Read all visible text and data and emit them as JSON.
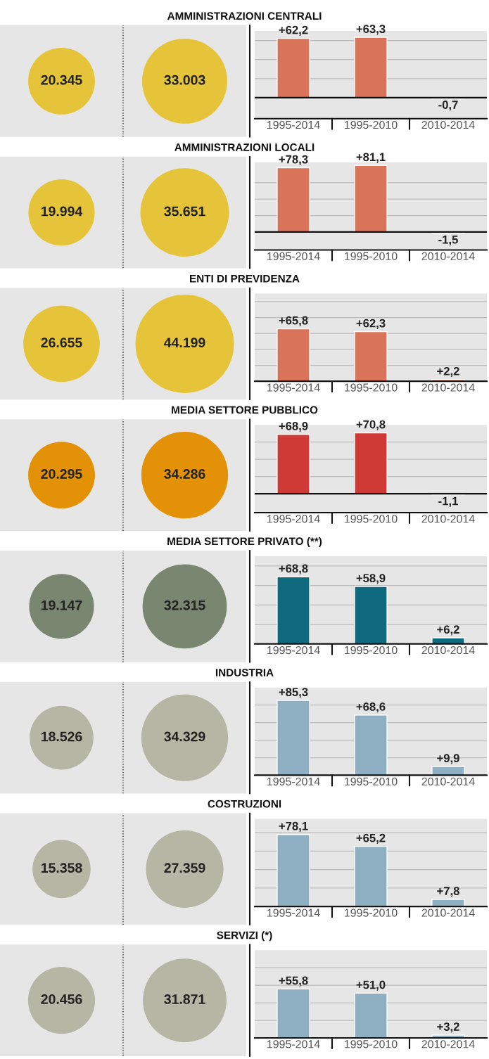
{
  "chart_data": [
    {
      "type": "other",
      "title": "AMMINISTRAZIONI CENTRALI",
      "values": [
        20345,
        33003
      ],
      "value_labels": [
        "20.345",
        "33.003"
      ],
      "colors": [
        "#e6c43a",
        "#e6c43a"
      ]
    },
    {
      "type": "bar",
      "categories": [
        "1995-2014",
        "1995-2010",
        "2010-2014"
      ],
      "values": [
        62.2,
        63.3,
        -0.7
      ],
      "value_labels": [
        "+62,2",
        "+63,3",
        "-0,7"
      ],
      "color": "#d9735a",
      "ylim": [
        -22,
        70
      ],
      "yticks": [
        {
          "value": 20,
          "label": null
        },
        {
          "value": 40,
          "label": null
        },
        {
          "value": 60,
          "label": null
        }
      ],
      "grid": "y",
      "tick_labels": "x"
    },
    {
      "type": "other",
      "title": "AMMINISTRAZIONI LOCALI",
      "values": [
        19994,
        35651
      ],
      "value_labels": [
        "19.994",
        "35.651"
      ],
      "colors": [
        "#e6c43a",
        "#e6c43a"
      ]
    },
    {
      "type": "bar",
      "categories": [
        "1995-2014",
        "1995-2010",
        "2010-2014"
      ],
      "values": [
        78.3,
        81.1,
        -1.5
      ],
      "value_labels": [
        "+78,3",
        "+81,1",
        "-1,5"
      ],
      "color": "#d9735a",
      "ylim": [
        -22,
        85
      ],
      "yticks": [
        {
          "value": 20,
          "label": null
        },
        {
          "value": 40,
          "label": null
        },
        {
          "value": 60,
          "label": null
        }
      ],
      "grid": "y",
      "tick_labels": "x"
    },
    {
      "type": "other",
      "title": "ENTI DI PREVIDENZA",
      "values": [
        26655,
        44199
      ],
      "value_labels": [
        "26.655",
        "44.199"
      ],
      "colors": [
        "#e6c43a",
        "#e6c43a"
      ]
    },
    {
      "type": "bar",
      "categories": [
        "1995-2014",
        "1995-2010",
        "2010-2014"
      ],
      "values": [
        65.8,
        62.3,
        2.2
      ],
      "value_labels": [
        "+65,8",
        "+62,3",
        "+2,2"
      ],
      "color": "#d9735a",
      "ylim": [
        0,
        110
      ],
      "yticks": [
        {
          "value": 20,
          "label": null
        },
        {
          "value": 40,
          "label": null
        },
        {
          "value": 60,
          "label": null
        },
        {
          "value": 80,
          "label": null
        },
        {
          "value": 100,
          "label": null
        }
      ],
      "grid": "y",
      "tick_labels": "x"
    },
    {
      "type": "other",
      "title": "MEDIA SETTORE PUBBLICO",
      "values": [
        20295,
        34286
      ],
      "value_labels": [
        "20.295",
        "34.286"
      ],
      "colors": [
        "#e39207",
        "#e39207"
      ]
    },
    {
      "type": "bar",
      "categories": [
        "1995-2014",
        "1995-2010",
        "2010-2014"
      ],
      "values": [
        68.9,
        70.8,
        -1.1
      ],
      "value_labels": [
        "+68,9",
        "+70,8",
        "-1,1"
      ],
      "color": "#d03a36",
      "ylim": [
        -22,
        80
      ],
      "yticks": [
        {
          "value": 20,
          "label": null
        },
        {
          "value": 40,
          "label": null
        },
        {
          "value": 60,
          "label": null
        }
      ],
      "grid": "y",
      "tick_labels": "x"
    },
    {
      "type": "other",
      "title": "MEDIA SETTORE PRIVATO (**)",
      "values": [
        19147,
        32315
      ],
      "value_labels": [
        "19.147",
        "32.315"
      ],
      "colors": [
        "#7a8770",
        "#7a8770"
      ]
    },
    {
      "type": "bar",
      "categories": [
        "1995-2014",
        "1995-2010",
        "2010-2014"
      ],
      "values": [
        68.8,
        58.9,
        6.2
      ],
      "value_labels": [
        "+68,8",
        "+58,9",
        "+6,2"
      ],
      "color": "#0f6a80",
      "ylim": [
        0,
        90
      ],
      "yticks": [
        {
          "value": 20,
          "label": null
        },
        {
          "value": 40,
          "label": null
        },
        {
          "value": 60,
          "label": null
        },
        {
          "value": 80,
          "label": null
        }
      ],
      "grid": "y",
      "tick_labels": "x"
    },
    {
      "type": "other",
      "title": "INDUSTRIA",
      "values": [
        18526,
        34329
      ],
      "value_labels": [
        "18.526",
        "34.329"
      ],
      "colors": [
        "#b6b6a4",
        "#b6b6a4"
      ]
    },
    {
      "type": "bar",
      "categories": [
        "1995-2014",
        "1995-2010",
        "2010-2014"
      ],
      "values": [
        85.3,
        68.6,
        9.9
      ],
      "value_labels": [
        "+85,3",
        "+68,6",
        "+9,9"
      ],
      "color": "#8fb0c2",
      "ylim": [
        0,
        100
      ],
      "yticks": [
        {
          "value": 20,
          "label": null
        },
        {
          "value": 40,
          "label": null
        },
        {
          "value": 60,
          "label": null
        },
        {
          "value": 80,
          "label": null
        }
      ],
      "grid": "y",
      "tick_labels": "x"
    },
    {
      "type": "other",
      "title": "COSTRUZIONI",
      "values": [
        15358,
        27359
      ],
      "value_labels": [
        "15.358",
        "27.359"
      ],
      "colors": [
        "#b6b6a4",
        "#b6b6a4"
      ]
    },
    {
      "type": "bar",
      "categories": [
        "1995-2014",
        "1995-2010",
        "2010-2014"
      ],
      "values": [
        78.1,
        65.2,
        7.8
      ],
      "value_labels": [
        "+78,1",
        "+65,2",
        "+7,8"
      ],
      "color": "#8fb0c2",
      "ylim": [
        0,
        95
      ],
      "yticks": [
        {
          "value": 20,
          "label": null
        },
        {
          "value": 40,
          "label": null
        },
        {
          "value": 60,
          "label": null
        },
        {
          "value": 80,
          "label": null
        }
      ],
      "grid": "y",
      "tick_labels": "x"
    },
    {
      "type": "other",
      "title": "SERVIZI (*)",
      "values": [
        20456,
        31871
      ],
      "value_labels": [
        "20.456",
        "31.871"
      ],
      "colors": [
        "#b6b6a4",
        "#b6b6a4"
      ]
    },
    {
      "type": "bar",
      "categories": [
        "1995-2014",
        "1995-2010",
        "2010-2014"
      ],
      "values": [
        55.8,
        51.0,
        3.2
      ],
      "value_labels": [
        "+55,8",
        "+51,0",
        "+3,2"
      ],
      "color": "#8fb0c2",
      "ylim": [
        0,
        100
      ],
      "yticks": [
        {
          "value": 20,
          "label": null
        },
        {
          "value": 40,
          "label": null
        },
        {
          "value": 60,
          "label": null
        },
        {
          "value": 80,
          "label": null
        }
      ],
      "grid": "y",
      "tick_labels": "x"
    }
  ]
}
